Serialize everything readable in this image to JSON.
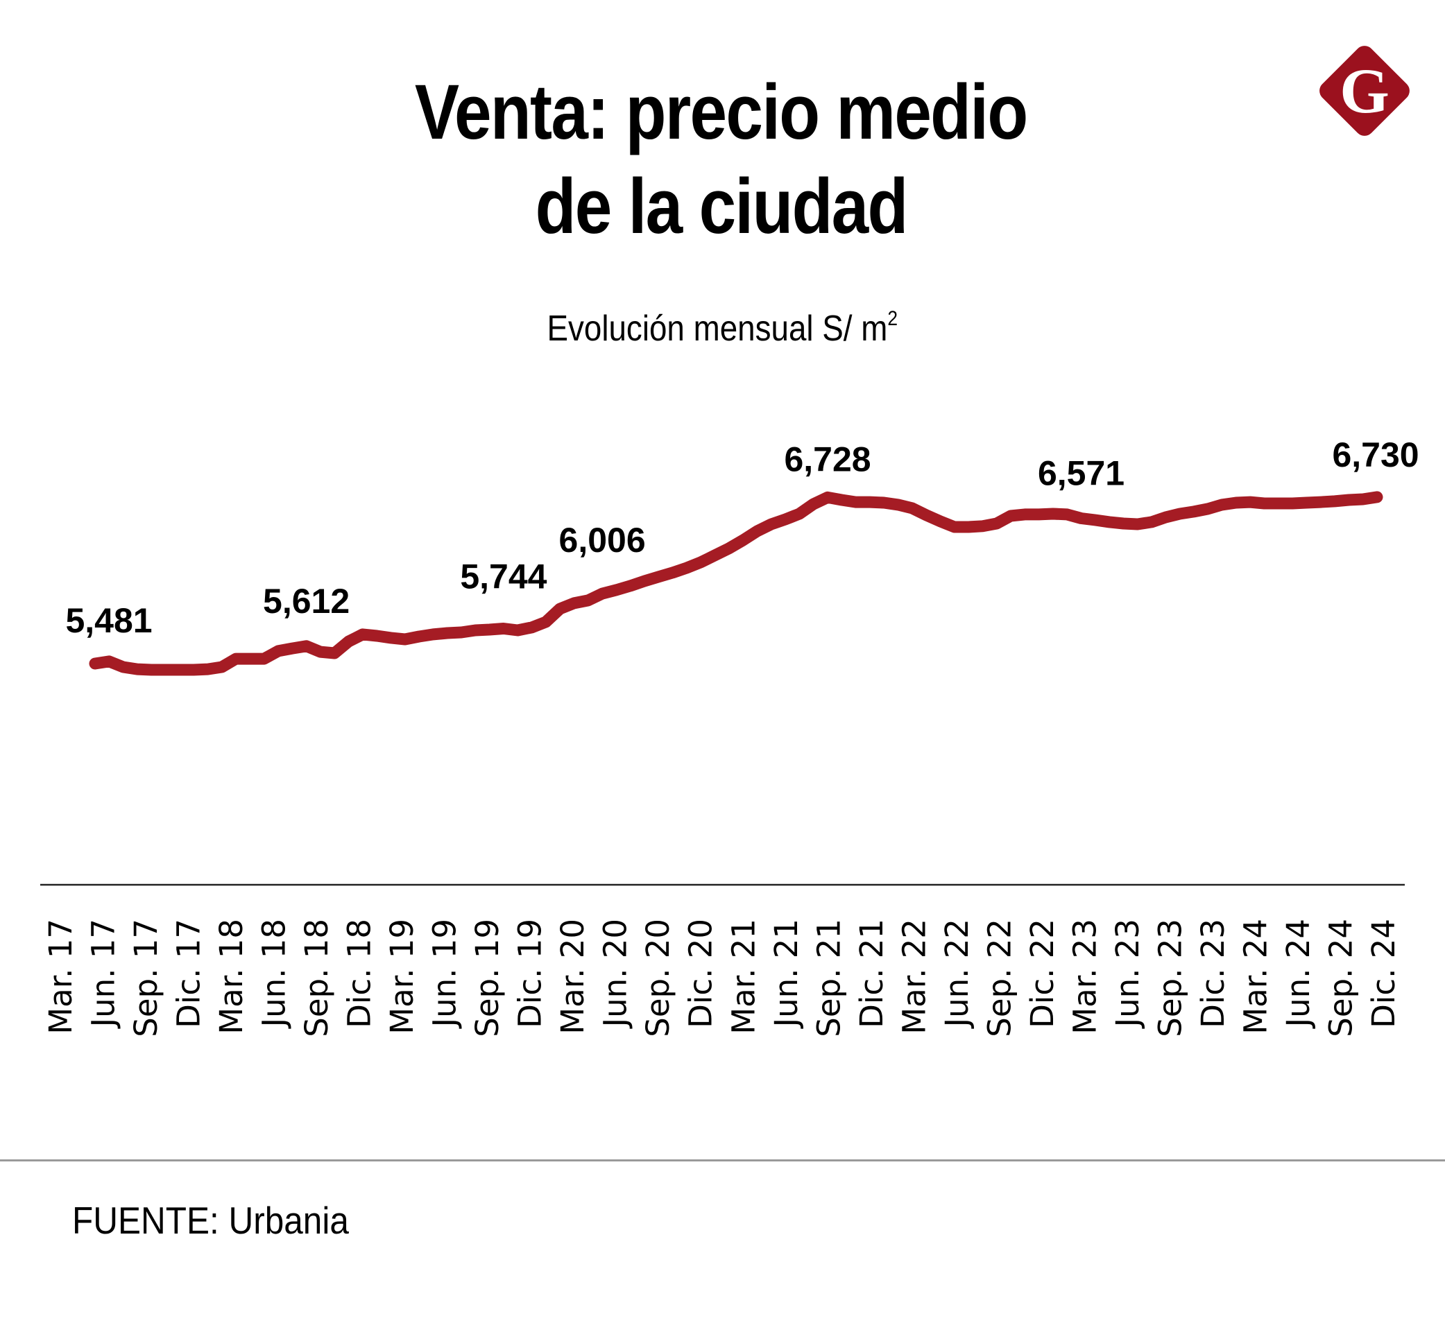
{
  "header": {
    "title_line1": "Venta: precio medio",
    "title_line2": "de la ciudad",
    "subtitle": "Evolución mensual S/ m",
    "subtitle_superscript": "2",
    "logo": {
      "icon": "g-diamond-logo-icon",
      "letter": "G",
      "color": "#9b111e"
    }
  },
  "footer": {
    "source": "FUENTE: Urbania"
  },
  "chart_data": {
    "type": "line",
    "title": "Venta: precio medio de la ciudad",
    "subtitle": "Evolución mensual S/ m²",
    "xlabel": "",
    "ylabel": "",
    "grid": false,
    "legend": "none",
    "line_color": "#a51c24",
    "ylim": [
      5300,
      6850
    ],
    "x_tick_labels": [
      "Mar. 17",
      "Jun. 17",
      "Sep. 17",
      "Dic. 17",
      "Mar. 18",
      "Jun. 18",
      "Sep. 18",
      "Dic. 18",
      "Mar. 19",
      "Jun. 19",
      "Sep. 19",
      "Dic. 19",
      "Mar. 20",
      "Jun. 20",
      "Sep. 20",
      "Dic. 20",
      "Mar. 21",
      "Jun. 21",
      "Sep. 21",
      "Dic. 21",
      "Mar. 22",
      "Jun. 22",
      "Sep. 22",
      "Dic. 22",
      "Mar. 23",
      "Jun. 23",
      "Sep. 23",
      "Dic. 23",
      "Mar. 24",
      "Jun. 24",
      "Sep. 24",
      "Dic. 24"
    ],
    "series": [
      {
        "name": "Precio medio S/ m²",
        "start": "Mar. 17",
        "frequency": "monthly",
        "values": [
          5481,
          5497,
          5455,
          5439,
          5434,
          5434,
          5434,
          5434,
          5439,
          5455,
          5517,
          5517,
          5517,
          5575,
          5595,
          5612,
          5569,
          5559,
          5647,
          5700,
          5689,
          5674,
          5663,
          5684,
          5700,
          5710,
          5715,
          5731,
          5736,
          5744,
          5731,
          5752,
          5793,
          5892,
          5934,
          5955,
          6006,
          6033,
          6064,
          6100,
          6132,
          6163,
          6199,
          6241,
          6293,
          6345,
          6407,
          6475,
          6527,
          6563,
          6605,
          6678,
          6728,
          6709,
          6693,
          6693,
          6688,
          6673,
          6647,
          6595,
          6548,
          6506,
          6506,
          6512,
          6532,
          6589,
          6600,
          6600,
          6605,
          6600,
          6571,
          6558,
          6543,
          6532,
          6527,
          6543,
          6579,
          6605,
          6621,
          6642,
          6673,
          6688,
          6693,
          6683,
          6683,
          6683,
          6688,
          6693,
          6699,
          6709,
          6714,
          6730
        ]
      }
    ],
    "annotations": [
      {
        "text": "5,481",
        "index": 0
      },
      {
        "text": "5,612",
        "index": 15
      },
      {
        "text": "5,744",
        "index": 29
      },
      {
        "text": "6,006",
        "index": 36
      },
      {
        "text": "6,728",
        "index": 52
      },
      {
        "text": "6,571",
        "index": 70
      },
      {
        "text": "6,730",
        "index": 91
      }
    ]
  }
}
